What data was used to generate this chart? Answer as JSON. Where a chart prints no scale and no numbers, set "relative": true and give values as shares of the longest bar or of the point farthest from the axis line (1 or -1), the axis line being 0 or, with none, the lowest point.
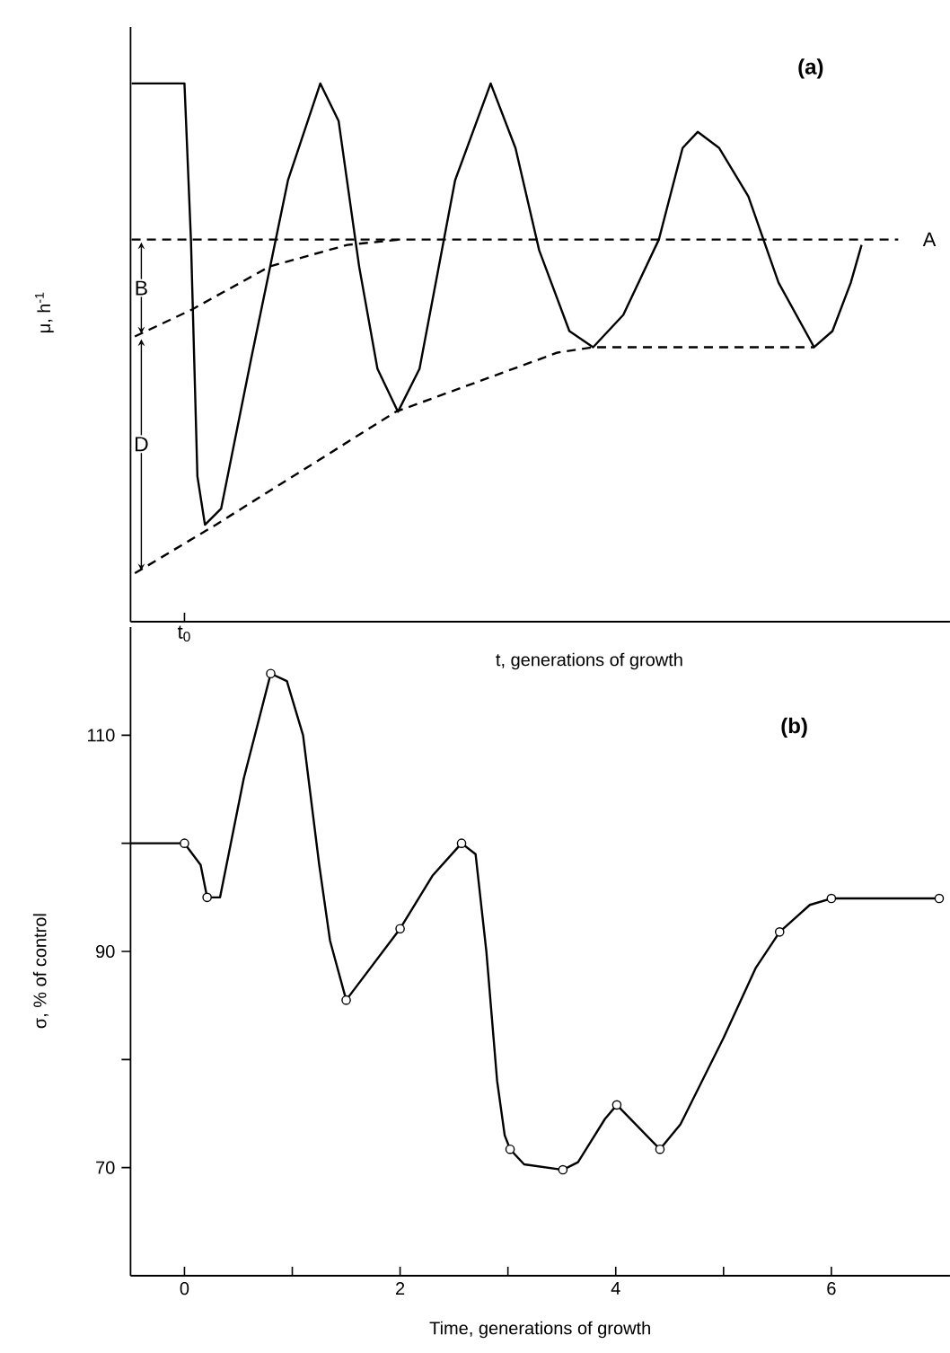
{
  "chart_data": [
    {
      "type": "line",
      "relative": true,
      "ylabel": "μ, h$^{-1}$",
      "xlabel": "t, generations of growth",
      "xlim": [
        -0.5,
        7.1
      ],
      "series": [
        {
          "color": "#000000",
          "line_style": "solid",
          "x": [
            -0.49,
            0,
            0.06,
            0.12,
            0.19,
            0.34,
            0.62,
            0.96,
            1.26,
            1.43,
            1.62,
            1.79,
            1.98,
            2.18,
            2.51,
            2.84,
            3.07,
            3.29,
            3.57,
            3.79,
            4.07,
            4.4,
            4.62,
            4.76,
            4.96,
            5.23,
            5.51,
            5.84,
            6.01,
            6.18,
            6.28
          ],
          "values": [
            1.0,
            1.0,
            0.71,
            0.27,
            0.18,
            0.21,
            0.49,
            0.82,
            1.0,
            0.93,
            0.66,
            0.47,
            0.39,
            0.47,
            0.82,
            1.0,
            0.88,
            0.69,
            0.54,
            0.51,
            0.57,
            0.71,
            0.88,
            0.91,
            0.88,
            0.79,
            0.63,
            0.51,
            0.54,
            0.63,
            0.7
          ]
        },
        {
          "color": "#000000",
          "line_style": "dashed",
          "x": [
            -0.49,
            6.62
          ],
          "values": [
            0.71,
            0.71
          ]
        },
        {
          "color": "#000000",
          "line_style": "dashed",
          "x": [
            -0.46,
            0.07,
            0.79,
            1.51,
            2.0
          ],
          "values": [
            0.53,
            0.58,
            0.66,
            0.7,
            0.71
          ]
        },
        {
          "color": "#000000",
          "line_style": "dashed",
          "x": [
            -0.46,
            0.29,
            1.96,
            3.46,
            3.79,
            5.84
          ],
          "values": [
            0.09,
            0.18,
            0.39,
            0.5,
            0.51,
            0.51
          ]
        }
      ],
      "annotations": [
        "(a)",
        "t$_{0}$",
        "A",
        {
          "text": "B",
          "x": -0.4,
          "y": 0.62
        },
        {
          "text": "D",
          "x": -0.4,
          "y": 0.33
        }
      ]
    },
    {
      "type": "line",
      "ylabel": "σ, % of control",
      "xlabel": "Time, generations of growth",
      "xlim": [
        -0.5,
        7.1
      ],
      "ylim": [
        60,
        120
      ],
      "xticks": [
        0,
        {
          "value": 1,
          "label": null
        },
        2,
        {
          "value": 3,
          "label": null
        },
        4,
        {
          "value": 5,
          "label": null
        },
        6
      ],
      "yticks": [
        70,
        {
          "value": 80,
          "label": null
        },
        90,
        {
          "value": 100,
          "label": null
        },
        110
      ],
      "series": [
        {
          "color": "#000000",
          "line_style": "solid",
          "x": [
            -0.5,
            0,
            0.15,
            0.21,
            0.33,
            0.55,
            0.8,
            0.95,
            1.1,
            1.25,
            1.35,
            1.5,
            2.0,
            2.3,
            2.57,
            2.7,
            2.8,
            2.9,
            2.97,
            3.02,
            3.15,
            3.51,
            3.65,
            3.9,
            4.01,
            4.41,
            4.6,
            5.0,
            5.3,
            5.52,
            5.8,
            6.0,
            7.0
          ],
          "values": [
            100,
            100,
            98,
            95,
            95,
            106,
            115.7,
            115,
            110,
            98,
            91,
            85.5,
            92.1,
            97,
            100,
            99,
            90,
            78,
            73,
            71.7,
            70.3,
            69.8,
            70.5,
            74.5,
            75.8,
            71.7,
            74,
            82,
            88.5,
            91.8,
            94.3,
            94.9,
            94.9
          ]
        },
        {
          "type": "scatter",
          "color": "#000000",
          "marker": "circle",
          "x": [
            0,
            0.21,
            0.8,
            1.5,
            2.0,
            2.57,
            3.02,
            3.51,
            4.01,
            4.41,
            5.52,
            6.0,
            7.0
          ],
          "values": [
            100,
            95,
            115.7,
            85.5,
            92.1,
            100,
            71.7,
            69.8,
            75.8,
            71.7,
            91.8,
            94.9,
            94.9
          ]
        }
      ],
      "annotations": [
        "(b)"
      ]
    }
  ]
}
